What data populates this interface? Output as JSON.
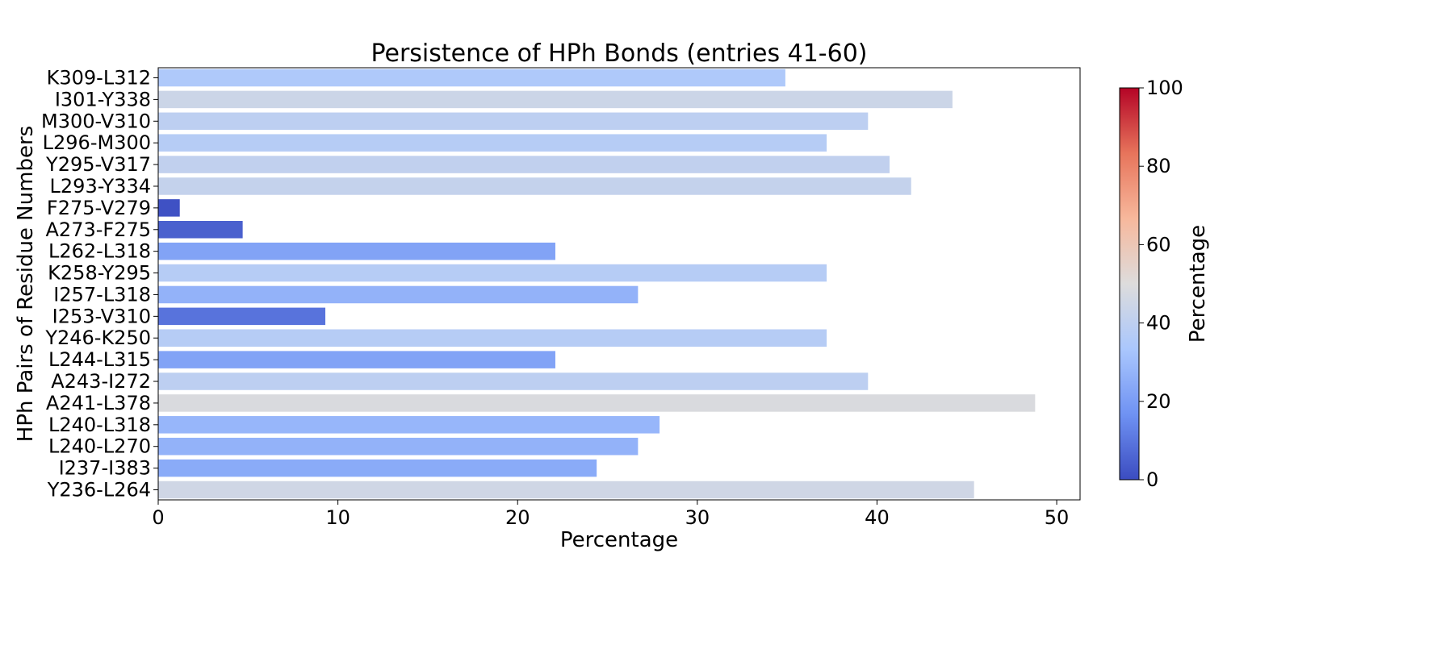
{
  "chart_data": {
    "type": "bar",
    "orientation": "horizontal",
    "title": "Persistence of HPh Bonds (entries 41-60)",
    "xlabel": "Percentage",
    "ylabel": "HPh Pairs of Residue Numbers",
    "xlim": [
      0,
      51.3
    ],
    "xticks": [
      0,
      10,
      20,
      30,
      40,
      50
    ],
    "grid": false,
    "categories": [
      "Y236-L264",
      "I237-I383",
      "L240-L270",
      "L240-L318",
      "A241-L378",
      "A243-I272",
      "L244-L315",
      "Y246-K250",
      "I253-V310",
      "I257-L318",
      "K258-Y295",
      "L262-L318",
      "A273-F275",
      "F275-V279",
      "L293-Y334",
      "Y295-V317",
      "L296-M300",
      "M300-V310",
      "I301-Y338",
      "K309-L312"
    ],
    "values": [
      45.4,
      24.4,
      26.7,
      27.9,
      48.8,
      39.5,
      22.1,
      37.2,
      9.3,
      26.7,
      37.2,
      22.1,
      4.7,
      1.2,
      41.9,
      40.7,
      37.2,
      39.5,
      44.2,
      34.9
    ],
    "colormap": {
      "name": "coolwarm",
      "label": "Percentage",
      "range": [
        0,
        100
      ],
      "ticks": [
        0,
        20,
        40,
        60,
        80,
        100
      ],
      "stops": [
        "#3b4cc0",
        "#6f92f3",
        "#aac7fd",
        "#dddcdc",
        "#f7b89c",
        "#e7745b",
        "#b40426"
      ]
    }
  }
}
